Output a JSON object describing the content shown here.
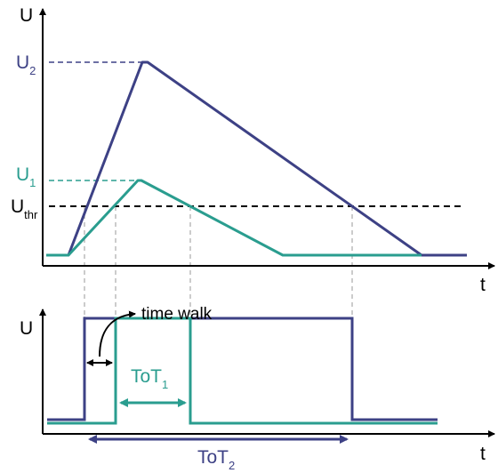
{
  "colors": {
    "u2": "#3d4185",
    "u1": "#2a9d8f",
    "axis": "#000000",
    "threshold": "#000000",
    "guide": "#aaaaaa"
  },
  "top_plot": {
    "y_axis_label": "U",
    "x_axis_label": "t",
    "u2_label": {
      "main": "U",
      "sub": "2"
    },
    "u1_label": {
      "main": "U",
      "sub": "1"
    },
    "thr_label": {
      "main": "U",
      "sub": "thr"
    }
  },
  "bottom_plot": {
    "y_axis_label": "U",
    "x_axis_label": "t",
    "time_walk_label": "time walk",
    "tot1_label": {
      "main": "ToT",
      "sub": "1"
    },
    "tot2_label": {
      "main": "ToT",
      "sub": "2"
    }
  }
}
